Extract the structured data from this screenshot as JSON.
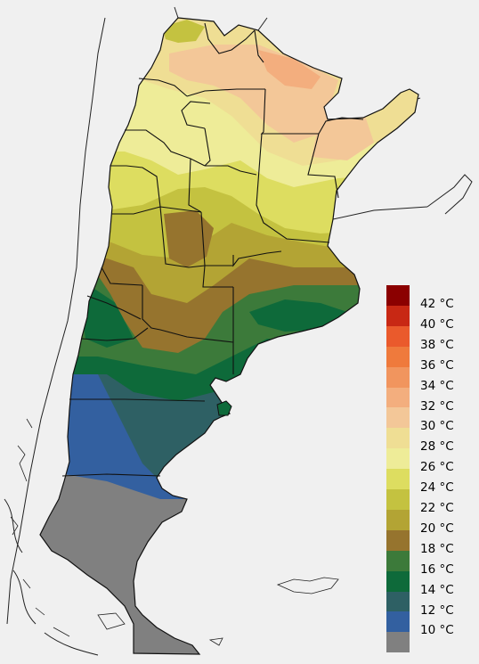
{
  "legend": {
    "entries": [
      {
        "label": "42 °C",
        "color": "#8b0000"
      },
      {
        "label": "40 °C",
        "color": "#c82814"
      },
      {
        "label": "38 °C",
        "color": "#ea5a2c"
      },
      {
        "label": "36 °C",
        "color": "#ef7a3c"
      },
      {
        "label": "34 °C",
        "color": "#f1955e"
      },
      {
        "label": "32 °C",
        "color": "#f3ae7e"
      },
      {
        "label": "30 °C",
        "color": "#f3c798"
      },
      {
        "label": "28 °C",
        "color": "#efde94"
      },
      {
        "label": "26 °C",
        "color": "#eeec98"
      },
      {
        "label": "24 °C",
        "color": "#dddd60"
      },
      {
        "label": "22 °C",
        "color": "#c4c240"
      },
      {
        "label": "20 °C",
        "color": "#b3a434"
      },
      {
        "label": "18 °C",
        "color": "#96742e"
      },
      {
        "label": "16 °C",
        "color": "#3c7a3a"
      },
      {
        "label": "14 °C",
        "color": "#0e6a3a"
      },
      {
        "label": "12 °C",
        "color": "#2e6064"
      },
      {
        "label": "10 °C",
        "color": "#3360a0"
      },
      {
        "label": "",
        "color": "#808080"
      }
    ]
  }
}
